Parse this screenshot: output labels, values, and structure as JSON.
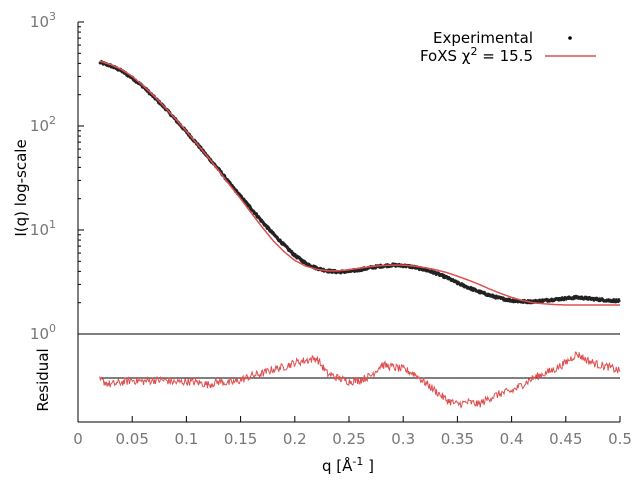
{
  "chart_data": [
    {
      "type": "line",
      "panel": "main",
      "ylabel": "I(q) log-scale",
      "yscale": "log",
      "ylim": [
        1,
        1000
      ],
      "xlim": [
        0,
        0.5
      ],
      "yticks": [
        {
          "base": "10",
          "exp": "3"
        },
        {
          "base": "10",
          "exp": "2"
        },
        {
          "base": "10",
          "exp": "1"
        },
        {
          "base": "10",
          "exp": "0"
        }
      ],
      "legend_position": "top-right",
      "legend": [
        {
          "label": "Experimental",
          "marker": "dot",
          "color": "#000000"
        },
        {
          "label_prefix": "FoXS χ",
          "label_sup": "2",
          "label_suffix": " = 15.5",
          "marker": "line",
          "color": "#e05050"
        }
      ],
      "series": [
        {
          "name": "Experimental",
          "color": "#222222",
          "x": [
            0.02,
            0.03,
            0.04,
            0.05,
            0.06,
            0.07,
            0.08,
            0.09,
            0.1,
            0.11,
            0.12,
            0.13,
            0.14,
            0.15,
            0.16,
            0.17,
            0.18,
            0.19,
            0.2,
            0.21,
            0.22,
            0.23,
            0.24,
            0.25,
            0.26,
            0.27,
            0.28,
            0.29,
            0.3,
            0.31,
            0.32,
            0.33,
            0.34,
            0.35,
            0.36,
            0.37,
            0.38,
            0.39,
            0.4,
            0.41,
            0.42,
            0.43,
            0.44,
            0.45,
            0.46,
            0.47,
            0.48,
            0.49,
            0.5
          ],
          "y": [
            410,
            380,
            340,
            290,
            240,
            190,
            150,
            115,
            88,
            67,
            50,
            38,
            28,
            21,
            16,
            12,
            9.2,
            7.2,
            5.7,
            4.8,
            4.3,
            4.05,
            3.95,
            4.0,
            4.15,
            4.35,
            4.5,
            4.6,
            4.55,
            4.4,
            4.15,
            3.85,
            3.5,
            3.1,
            2.8,
            2.55,
            2.35,
            2.2,
            2.1,
            2.05,
            2.05,
            2.1,
            2.15,
            2.2,
            2.25,
            2.2,
            2.15,
            2.1,
            2.08
          ]
        },
        {
          "name": "FoXS",
          "color": "#e05050",
          "x": [
            0.02,
            0.03,
            0.04,
            0.05,
            0.06,
            0.07,
            0.08,
            0.09,
            0.1,
            0.11,
            0.12,
            0.13,
            0.14,
            0.15,
            0.16,
            0.17,
            0.18,
            0.19,
            0.2,
            0.21,
            0.22,
            0.23,
            0.24,
            0.25,
            0.26,
            0.27,
            0.28,
            0.29,
            0.3,
            0.31,
            0.32,
            0.33,
            0.34,
            0.35,
            0.36,
            0.37,
            0.38,
            0.39,
            0.4,
            0.41,
            0.42,
            0.43,
            0.44,
            0.45,
            0.46,
            0.47,
            0.48,
            0.49,
            0.5
          ],
          "y": [
            420,
            390,
            350,
            300,
            245,
            195,
            152,
            117,
            89,
            67,
            50,
            37,
            27,
            20,
            14.5,
            10.6,
            7.9,
            6.2,
            5.1,
            4.5,
            4.2,
            4.05,
            4.05,
            4.15,
            4.3,
            4.45,
            4.55,
            4.6,
            4.6,
            4.5,
            4.35,
            4.15,
            3.9,
            3.6,
            3.3,
            3.0,
            2.7,
            2.45,
            2.25,
            2.1,
            2.0,
            1.95,
            1.92,
            1.9,
            1.9,
            1.9,
            1.9,
            1.9,
            1.9
          ]
        }
      ]
    },
    {
      "type": "line",
      "panel": "residual",
      "ylabel": "Residual",
      "xlabel_base": "q [Å",
      "xlabel_sup": "-1",
      "xlabel_suffix": " ]",
      "xlim": [
        0,
        0.5
      ],
      "ylim": [
        -1,
        1
      ],
      "x_ticks": [
        "0",
        "0.05",
        "0.1",
        "0.15",
        "0.2",
        "0.25",
        "0.3",
        "0.35",
        "0.4",
        "0.45",
        "0.5"
      ],
      "series": [
        {
          "name": "Residual",
          "color": "#e05050",
          "x": [
            0.02,
            0.03,
            0.04,
            0.05,
            0.06,
            0.07,
            0.08,
            0.09,
            0.1,
            0.11,
            0.12,
            0.13,
            0.14,
            0.15,
            0.16,
            0.17,
            0.18,
            0.19,
            0.2,
            0.21,
            0.22,
            0.23,
            0.24,
            0.25,
            0.26,
            0.27,
            0.28,
            0.29,
            0.3,
            0.31,
            0.32,
            0.33,
            0.34,
            0.35,
            0.36,
            0.37,
            0.38,
            0.39,
            0.4,
            0.41,
            0.42,
            0.43,
            0.44,
            0.45,
            0.46,
            0.47,
            0.48,
            0.49,
            0.5
          ],
          "y": [
            -0.05,
            -0.15,
            -0.1,
            -0.05,
            -0.08,
            -0.05,
            -0.05,
            -0.1,
            -0.08,
            -0.1,
            -0.15,
            -0.08,
            -0.12,
            -0.05,
            0.05,
            0.1,
            0.2,
            0.25,
            0.35,
            0.4,
            0.45,
            0.1,
            0.0,
            -0.08,
            -0.05,
            0.05,
            0.3,
            0.25,
            0.2,
            0.1,
            -0.1,
            -0.3,
            -0.5,
            -0.6,
            -0.55,
            -0.6,
            -0.45,
            -0.35,
            -0.3,
            -0.15,
            0.0,
            0.1,
            0.2,
            0.35,
            0.55,
            0.4,
            0.3,
            0.25,
            0.15
          ]
        }
      ]
    }
  ]
}
